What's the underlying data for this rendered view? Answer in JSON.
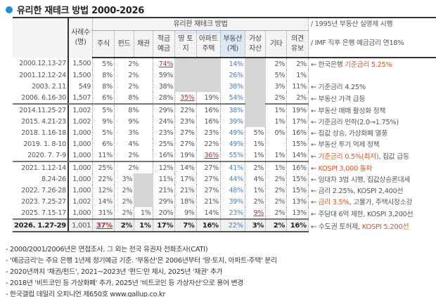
{
  "title": "유리한 재테크 방법 2000-2026",
  "header": {
    "group_label": "유리한 재테크 방법",
    "sample": "사례수 (명)",
    "columns": [
      "주식",
      "펀드",
      "채권",
      "적금 예금",
      "땅 토지",
      "아파트 주택",
      "부동산 (계)",
      "가상 자산",
      "기타",
      "의견 유보"
    ],
    "notes": [
      "/ 1995년 부동산 실명제 시행",
      "/ IMF 직후 은행 예금금리 연18%"
    ]
  },
  "colors": {
    "accent": "#1a8be0",
    "realestate": "#4a80c8",
    "highlight": "#b8323a",
    "note_orange": "#d0572a"
  },
  "rows": [
    {
      "date": "2000.12.13-27",
      "n": "1,500",
      "stock": "5%",
      "fund": "2%",
      "bond": null,
      "deposit": "74%",
      "land": null,
      "apt": null,
      "re": "14%",
      "virtual": null,
      "other": "2%",
      "undecided": "2%",
      "hl": [
        "deposit"
      ],
      "note": [
        [
          "← 한국은행 ",
          ""
        ],
        [
          "기준금리 5.25%",
          "o"
        ]
      ]
    },
    {
      "date": "2001.12.12-24",
      "n": "1,500",
      "stock": "8%",
      "fund": "2%",
      "bond": null,
      "deposit": "59%",
      "land": null,
      "apt": null,
      "re": "26%",
      "virtual": null,
      "other": "5%",
      "undecided": "1%",
      "hl": [],
      "note": []
    },
    {
      "date": "2003. 2.11",
      "n": "549",
      "stock": "8%",
      "fund": "2%",
      "bond": null,
      "deposit": "38%",
      "land": null,
      "apt": null,
      "re": "38%",
      "virtual": null,
      "other": "3%",
      "undecided": "11%",
      "hl": [],
      "note": [
        [
          "← 기준금리 4.25%",
          ""
        ]
      ]
    },
    {
      "date": "2006. 6.16-30",
      "n": "1,507",
      "stock": "6%",
      "fund": "8%",
      "bond": null,
      "deposit": "28%",
      "land": "35%",
      "apt": "19%",
      "re": "54%",
      "virtual": null,
      "other": "2%",
      "undecided": "2%",
      "hl": [
        "land"
      ],
      "note": [
        [
          "← 부동산 가격 급등",
          ""
        ]
      ]
    },
    {
      "date": "2014.11.25-27",
      "n": "1,002",
      "stock": "5%",
      "fund": "8%",
      "bond": null,
      "deposit": "29%",
      "land": "22%",
      "apt": "16%",
      "re": "38%",
      "virtual": null,
      "other": "1%",
      "undecided": "19%",
      "hl": [],
      "note": [
        [
          "← 부동산 매매 활성화 정책",
          ""
        ]
      ]
    },
    {
      "date": "2015. 4.21-23",
      "n": "1,002",
      "stock": "9%",
      "fund": "9%",
      "bond": null,
      "deposit": "24%",
      "land": "23%",
      "apt": "16%",
      "re": "39%",
      "virtual": null,
      "other": "1%",
      "undecided": "17%",
      "hl": [],
      "note": [
        [
          "← 기준금리 인하(2.0→1.75%)",
          ""
        ]
      ]
    },
    {
      "date": "2018. 1.16-18",
      "n": "1,000",
      "stock": "5%",
      "fund": "3%",
      "bond": null,
      "deposit": "23%",
      "land": "27%",
      "apt": "23%",
      "re": "49%",
      "virtual": "5%",
      "other": "0%",
      "undecided": "16%",
      "hl": [],
      "note": [
        [
          "← 집값 상승, 가상화폐 열풍",
          ""
        ]
      ]
    },
    {
      "date": "2019. 1. 8-10",
      "n": "1,000",
      "stock": "6%",
      "fund": "4%",
      "bond": null,
      "deposit": "25%",
      "land": "27%",
      "apt": "22%",
      "re": "49%",
      "virtual": "1%",
      "other": "",
      "undecided": "15%",
      "hl": [],
      "note": [
        [
          "← 부동산 투기 억제 정책",
          ""
        ]
      ]
    },
    {
      "date": "2020. 7. 7-9",
      "n": "1,000",
      "stock": "11%",
      "fund": "2%",
      "bond": null,
      "deposit": "16%",
      "land": "19%",
      "apt": "36%",
      "re": "55%",
      "virtual": "1%",
      "other": "1%",
      "undecided": "14%",
      "hl": [
        "apt"
      ],
      "note": [
        [
          "← ",
          ""
        ],
        [
          "기준금리 0.5%(최저)",
          "o"
        ],
        [
          ", 집값 급등",
          ""
        ]
      ]
    },
    {
      "date": "2021. 1.12-14",
      "n": "1,000",
      "stock": "25%",
      "fund": "2%",
      "bond": null,
      "deposit": "12%",
      "land": "14%",
      "apt": "27%",
      "re": "41%",
      "virtual": "2%",
      "other": "1%",
      "undecided": "16%",
      "hl": [],
      "note": [
        [
          "← ",
          ""
        ],
        [
          "KOSPI 3,000 돌파",
          "o"
        ]
      ]
    },
    {
      "date": "8.24-26",
      "n": "1,000",
      "stock": "22%",
      "fund": "3%",
      "bond": null,
      "deposit": "11%",
      "land": "17%",
      "apt": "27%",
      "re": "44%",
      "virtual": "4%",
      "other": "2%",
      "undecided": "15%",
      "hl": [],
      "note": [
        [
          "← 임대차 3법 시행, 집값상승론대세",
          ""
        ]
      ]
    },
    {
      "date": "2022. 7.26-28",
      "n": "1,000",
      "stock": "12%",
      "fund": "2%",
      "bond": null,
      "deposit": "21%",
      "land": "21%",
      "apt": "27%",
      "re": "48%",
      "virtual": "1%",
      "other": "2%",
      "undecided": "15%",
      "hl": [],
      "note": [
        [
          "← 금리 2.25%, KOSPI 2,400선",
          ""
        ]
      ]
    },
    {
      "date": "2023. 7.25-27",
      "n": "1,002",
      "stock": "14%",
      "fund": "2%",
      "bond": null,
      "deposit": "29%",
      "land": "18%",
      "apt": "21%",
      "re": "39%",
      "virtual": "2%",
      "other": "2%",
      "undecided": "13%",
      "hl": [],
      "note": [
        [
          "← ",
          ""
        ],
        [
          "금리 3.5%",
          "o"
        ],
        [
          ", 고물가, 주택시장소강",
          ""
        ]
      ]
    },
    {
      "date": "2025. 7.15-17",
      "n": "1,000",
      "stock": "31%",
      "fund": "2%",
      "bond": "1%",
      "deposit": "20%",
      "land": "9%",
      "apt": "14%",
      "re": "23%",
      "virtual": "9%",
      "other": "2%",
      "undecided": "13%",
      "hl": [
        "virtual"
      ],
      "note": [
        [
          "← 주담대 6억 제한, KOSPI 3,200선",
          ""
        ]
      ]
    },
    {
      "date": "2026. 1.27-29",
      "n": "1,001",
      "stock": "37%",
      "fund": "2%",
      "bond": "1%",
      "deposit": "17%",
      "land": "7%",
      "apt": "16%",
      "re": "22%",
      "virtual": "3%",
      "other": "2%",
      "undecided": "16%",
      "hl": [
        "stock"
      ],
      "note": [
        [
          "← 수도권 토허제, ",
          ""
        ],
        [
          "KOSPI 5,200선",
          "o"
        ]
      ]
    }
  ],
  "footnotes": [
    "- 2000/2001/2006년은 면접조사, 그 외는 전국 유권자 전화조사(CATI)",
    "- '예금금리'는 주요 은행 1년제 정기예금 기준. '부동산'은 2006년부터 '땅·토지, 아파트·주택' 분리",
    "- 2020년까지 '채권/펀드', 2021~2023년 '펀드'만 제시, 2025년 '채권' 추가",
    "- 2018년 '비트코인 등 가상화폐' 추가, 2025년 '비트코인 등 가상자산'으로 용어 변경",
    "- 한국갤럽 데일리 오피니언 제650호 www.gallup.co.kr"
  ]
}
